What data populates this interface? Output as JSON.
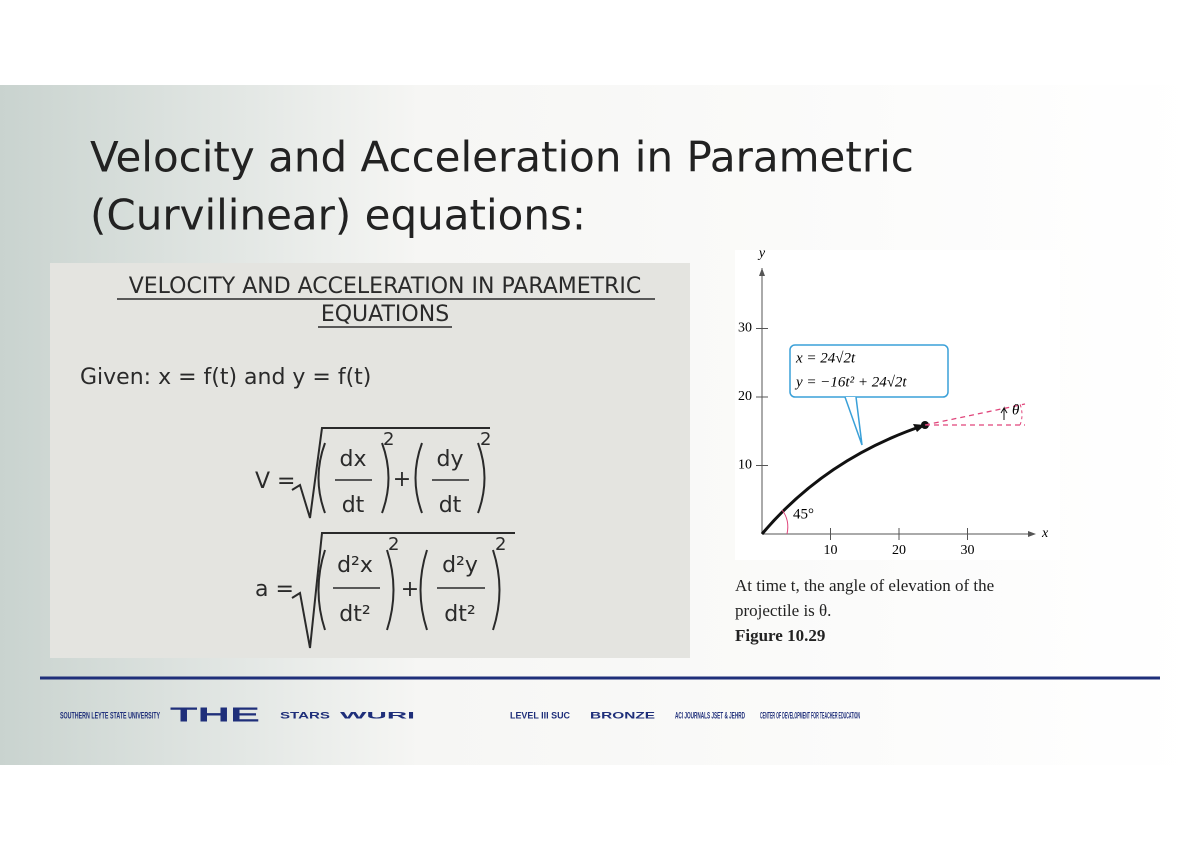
{
  "title": [
    "Velocity and Acceleration in Parametric",
    "(Curvilinear) equations:"
  ],
  "left_image": {
    "heading": [
      "VELOCITY AND ACCELERATION IN PARAMETRIC",
      "EQUATIONS"
    ],
    "given": "Given: x = f(t) and y = f(t)",
    "velocity": {
      "lhs": "V =",
      "terms": [
        {
          "num": "dx",
          "den": "dt"
        },
        {
          "num": "dy",
          "den": "dt"
        }
      ],
      "exponent": "2",
      "plus": "+"
    },
    "acceleration": {
      "lhs": "a =",
      "terms": [
        {
          "num": "d²x",
          "den": "dt²"
        },
        {
          "num": "d²y",
          "den": "dt²"
        }
      ],
      "exponent": "2",
      "plus": "+"
    }
  },
  "figure": {
    "y_label": "y",
    "x_label": "x",
    "xticks": [
      10,
      20,
      30
    ],
    "yticks": [
      10,
      20,
      30
    ],
    "equation": [
      "x = 24√2t",
      "y = −16t² + 24√2t"
    ],
    "angle_label": "45°",
    "theta": "θ",
    "caption": [
      "At time t, the angle of elevation of the",
      "projectile is θ."
    ],
    "figure_label": "Figure 10.29"
  },
  "footer": {
    "logos": [
      "SOUTHERN LEYTE STATE UNIVERSITY",
      "THE",
      "STARS",
      "WURI",
      "LEVEL III SUC",
      "BRONZE",
      "ACI JOURNALS JSET & JEHRD",
      "CENTER OF DEVELOPMENT FOR TEACHER EDUCATION"
    ]
  }
}
